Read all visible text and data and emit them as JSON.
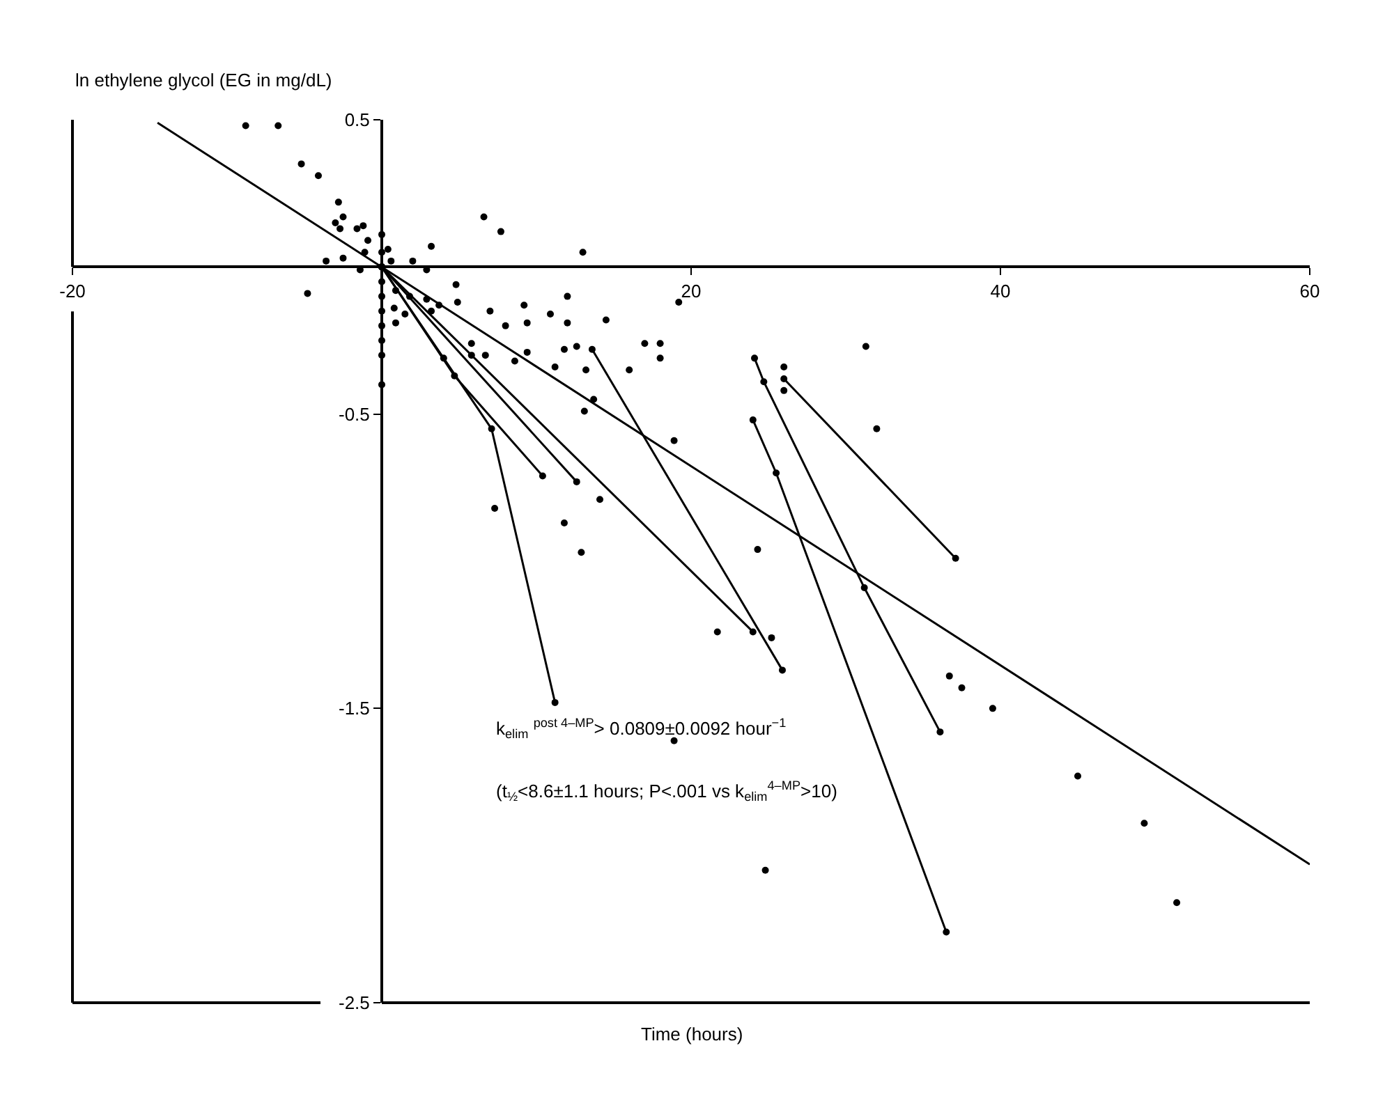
{
  "chart_data": {
    "type": "scatter",
    "ylabel": "ln ethylene glycol (EG in mg/dL)",
    "xlabel": "Time (hours)",
    "xlim": [
      -20,
      60
    ],
    "ylim": [
      -2.5,
      0.5
    ],
    "xticks": [
      -20,
      20,
      40,
      60
    ],
    "yticks": [
      0.5,
      -0.5,
      -1.5,
      -2.5
    ],
    "legend": false,
    "marker": "circle",
    "annotations": [
      "k$_{elim}$ $^{post 4–MP}$> 0.0809±0.0092 hour$^{−1}$",
      "(t$_{½}$<8.6±1.1 hours; P<.001 vs k$_{elim}$$^{4–MP}$>10)"
    ],
    "series": [
      {
        "color": "#000000",
        "x": [
          -8.8,
          -6.7,
          -5.2,
          -4.1,
          -2.8,
          -2.5,
          -3.0,
          -2.7,
          -1.6,
          -1.2,
          -0.9,
          -1.1,
          -3.6,
          -2.5,
          -1.4,
          -4.8,
          0,
          0,
          0,
          0,
          0,
          0,
          0,
          0,
          0,
          0,
          0.4,
          0.6,
          2.0,
          3.2,
          2.9,
          4.8,
          6.6,
          7.7,
          13.0,
          19.2,
          0.9,
          1.8,
          2.9,
          3.7,
          4.9,
          0.8,
          1.5,
          3.2,
          0.9,
          7.0,
          9.2,
          12.0,
          10.9,
          9.4,
          12.0,
          8.0,
          14.5,
          5.8,
          6.7,
          5.8,
          8.6,
          9.4,
          11.8,
          12.6,
          11.2,
          13.2,
          16.0,
          17.0,
          18.0,
          18.0,
          13.7,
          13.1,
          18.9,
          7.3,
          14.1,
          11.8,
          12.9,
          21.7,
          25.2,
          24.3,
          26.0,
          26.0,
          31.3,
          32.0,
          36.7,
          37.5,
          39.5,
          45.0,
          49.3,
          51.4,
          24.8,
          18.9
        ],
        "values": [
          0.48,
          0.48,
          0.35,
          0.31,
          0.22,
          0.17,
          0.15,
          0.13,
          0.13,
          0.14,
          0.09,
          0.05,
          0.02,
          0.03,
          -0.01,
          -0.09,
          0.11,
          0.05,
          0,
          -0.05,
          -0.1,
          -0.15,
          -0.2,
          -0.25,
          -0.3,
          -0.4,
          0.06,
          0.02,
          0.02,
          0.07,
          -0.01,
          -0.06,
          0.17,
          0.12,
          0.05,
          -0.12,
          -0.08,
          -0.1,
          -0.11,
          -0.13,
          -0.12,
          -0.14,
          -0.16,
          -0.15,
          -0.19,
          -0.15,
          -0.13,
          -0.1,
          -0.16,
          -0.19,
          -0.19,
          -0.2,
          -0.18,
          -0.26,
          -0.3,
          -0.3,
          -0.32,
          -0.29,
          -0.28,
          -0.27,
          -0.34,
          -0.35,
          -0.35,
          -0.26,
          -0.26,
          -0.31,
          -0.45,
          -0.49,
          -0.59,
          -0.82,
          -0.79,
          -0.87,
          -0.97,
          -1.24,
          -1.26,
          -0.96,
          -0.34,
          -0.42,
          -0.27,
          -0.55,
          -1.39,
          -1.43,
          -1.5,
          -1.73,
          -1.89,
          -2.16,
          -2.05,
          -1.61
        ]
      },
      {
        "type": "line",
        "color": "#000000",
        "marker": "none",
        "x": [
          -14.5,
          60
        ],
        "values": [
          0.49,
          -2.03
        ]
      },
      {
        "type": "line",
        "color": "#000000",
        "x": [
          0,
          4.0,
          7.1,
          11.2
        ],
        "values": [
          0,
          -0.31,
          -0.55,
          -1.48
        ]
      },
      {
        "type": "line",
        "color": "#000000",
        "x": [
          0,
          4.7,
          10.4
        ],
        "values": [
          0,
          -0.37,
          -0.71
        ]
      },
      {
        "type": "line",
        "color": "#000000",
        "x": [
          0,
          12.6
        ],
        "values": [
          0,
          -0.73
        ]
      },
      {
        "type": "line",
        "color": "#000000",
        "x": [
          0,
          24.0
        ],
        "values": [
          0,
          -1.24
        ]
      },
      {
        "type": "line",
        "color": "#000000",
        "x": [
          13.6,
          25.9
        ],
        "values": [
          -0.28,
          -1.37
        ]
      },
      {
        "type": "line",
        "color": "#000000",
        "x": [
          24.1,
          24.7,
          31.2,
          36.1
        ],
        "values": [
          -0.31,
          -0.39,
          -1.09,
          -1.58
        ]
      },
      {
        "type": "line",
        "color": "#000000",
        "x": [
          24.0,
          25.5,
          36.5
        ],
        "values": [
          -0.52,
          -0.7,
          -2.26
        ]
      },
      {
        "type": "line",
        "color": "#000000",
        "x": [
          26.0,
          37.1
        ],
        "values": [
          -0.38,
          -0.99
        ]
      }
    ]
  }
}
